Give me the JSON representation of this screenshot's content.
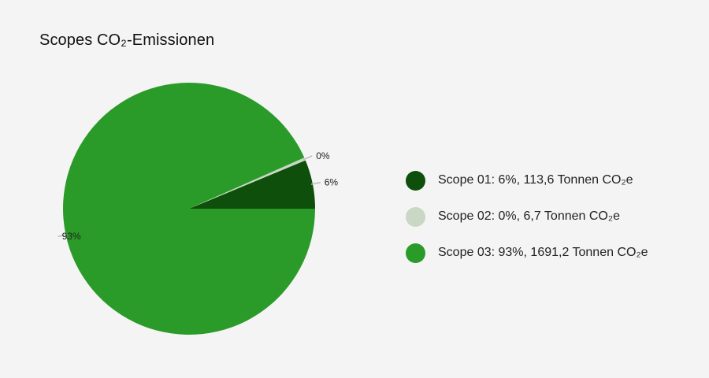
{
  "title": "Scopes CO₂-Emissionen",
  "chart_data": {
    "type": "pie",
    "title": "Scopes CO₂-Emissionen",
    "start_angle_deg": 0,
    "direction": "counterclockwise",
    "legend_position": "right",
    "slices": [
      {
        "name": "Scope 01",
        "value": 113.6,
        "percent_label": "6%",
        "legend": "Scope 01: 6%, 113,6 Tonnen CO₂e",
        "color": "#0d4f0b"
      },
      {
        "name": "Scope 02",
        "value": 6.7,
        "percent_label": "0%",
        "legend": "Scope 02: 0%, 6,7 Tonnen CO₂e",
        "color": "#c8d8c4"
      },
      {
        "name": "Scope 03",
        "value": 1691.2,
        "percent_label": "93%",
        "legend": "Scope 03: 93%, 1691,2 Tonnen CO₂e",
        "color": "#2a9b28"
      }
    ]
  }
}
